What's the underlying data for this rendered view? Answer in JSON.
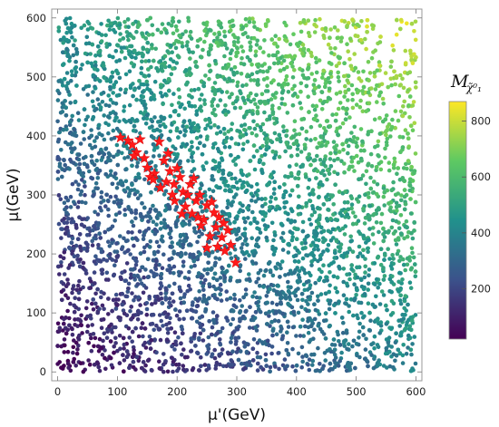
{
  "chart_data": {
    "type": "scatter",
    "title": "",
    "xlabel": "μ'(GeV)",
    "ylabel": "μ(GeV)",
    "xlim": [
      -10,
      610
    ],
    "ylim": [
      -15,
      615
    ],
    "xticks": [
      0,
      100,
      200,
      300,
      400,
      500,
      600
    ],
    "yticks": [
      0,
      100,
      200,
      300,
      400,
      500,
      600
    ],
    "grid": false,
    "colorbar": {
      "label_main": "M",
      "label_sub": "χ̃⁰₁",
      "range": [
        20,
        870
      ],
      "ticks": [
        200,
        400,
        600,
        800
      ],
      "colors": [
        "#440154",
        "#3b528b",
        "#21918c",
        "#5ec962",
        "#fde725"
      ]
    },
    "background_cloud": {
      "description_of_distribution": "dense uniform scatter over 0-600 x 0-600, color increasing with x + y",
      "point_count": 5200,
      "x_range": [
        0,
        600
      ],
      "y_range": [
        0,
        600
      ]
    },
    "highlighted_series": {
      "marker": "star",
      "color": "#ff1a1a",
      "points": [
        [
          105,
          397
        ],
        [
          118,
          392
        ],
        [
          125,
          385
        ],
        [
          138,
          394
        ],
        [
          132,
          372
        ],
        [
          145,
          362
        ],
        [
          170,
          390
        ],
        [
          162,
          336
        ],
        [
          155,
          330
        ],
        [
          178,
          358
        ],
        [
          185,
          370
        ],
        [
          188,
          340
        ],
        [
          182,
          322
        ],
        [
          195,
          318
        ],
        [
          200,
          345
        ],
        [
          205,
          330
        ],
        [
          210,
          305
        ],
        [
          196,
          290
        ],
        [
          218,
          300
        ],
        [
          222,
          318
        ],
        [
          228,
          328
        ],
        [
          214,
          280
        ],
        [
          232,
          290
        ],
        [
          238,
          300
        ],
        [
          225,
          268
        ],
        [
          245,
          258
        ],
        [
          250,
          282
        ],
        [
          258,
          288
        ],
        [
          262,
          270
        ],
        [
          270,
          262
        ],
        [
          240,
          248
        ],
        [
          255,
          230
        ],
        [
          265,
          245
        ],
        [
          278,
          252
        ],
        [
          285,
          240
        ],
        [
          275,
          228
        ],
        [
          268,
          212
        ],
        [
          290,
          215
        ],
        [
          280,
          205
        ],
        [
          298,
          185
        ],
        [
          250,
          210
        ],
        [
          235,
          262
        ],
        [
          208,
          268
        ],
        [
          192,
          300
        ],
        [
          172,
          312
        ],
        [
          160,
          326
        ],
        [
          150,
          346
        ],
        [
          128,
          366
        ]
      ]
    }
  }
}
